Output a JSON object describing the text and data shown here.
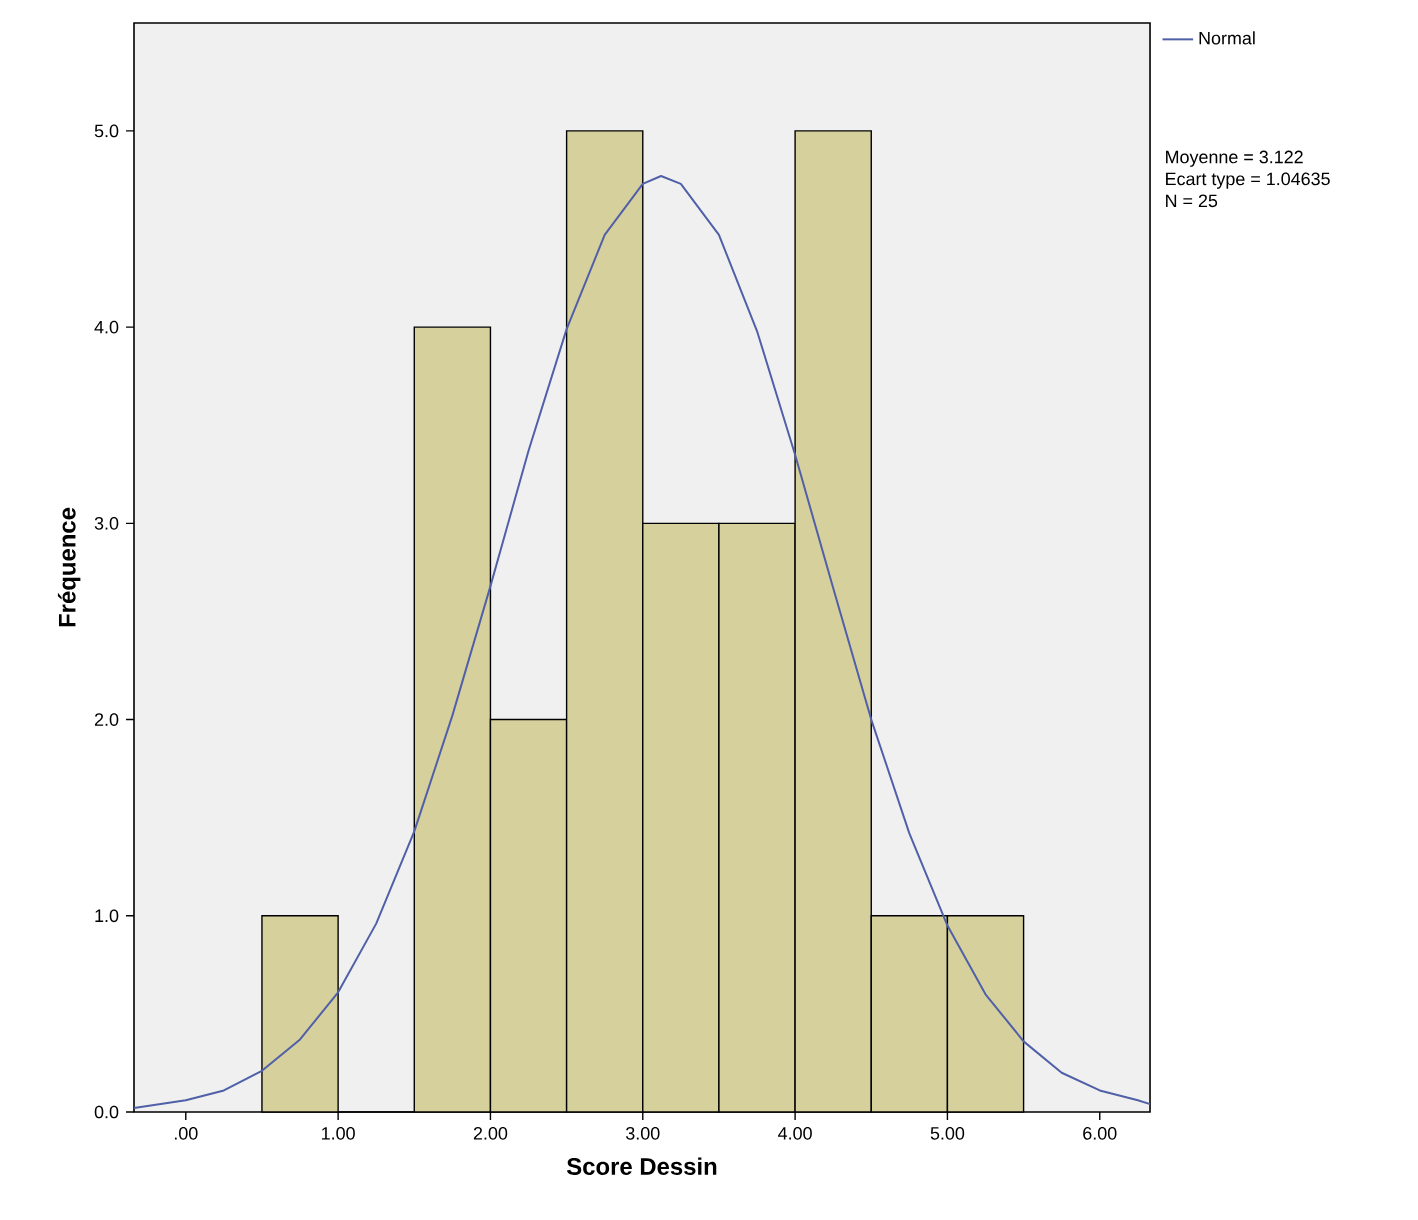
{
  "chart_data": {
    "type": "histogram",
    "xlabel": "Score Dessin",
    "ylabel": "Fréquence",
    "bins": [
      0.5,
      1.0,
      1.5,
      2.0,
      2.5,
      3.0,
      3.5,
      4.0,
      4.5,
      5.0,
      5.5
    ],
    "values": [
      1,
      0,
      4,
      2,
      5,
      3,
      3,
      5,
      1,
      1
    ],
    "color": "#d6d09c",
    "series": [
      {
        "type": "line",
        "name": "Normal",
        "color": "#5060a8",
        "x": [
          -0.34,
          0,
          0.25,
          0.5,
          0.75,
          1.0,
          1.25,
          1.5,
          1.75,
          2.0,
          2.25,
          2.5,
          2.75,
          3.0,
          3.12,
          3.25,
          3.5,
          3.75,
          4.0,
          4.25,
          4.5,
          4.75,
          5.0,
          5.25,
          5.5,
          5.75,
          6.0,
          6.25,
          6.33
        ],
        "values": [
          0.02,
          0.06,
          0.11,
          0.21,
          0.37,
          0.61,
          0.96,
          1.43,
          2.02,
          2.68,
          3.37,
          3.99,
          4.47,
          4.73,
          4.77,
          4.73,
          4.47,
          3.98,
          3.35,
          2.67,
          2.0,
          1.42,
          0.95,
          0.6,
          0.36,
          0.2,
          0.11,
          0.06,
          0.04
        ]
      }
    ],
    "xlim": [
      -0.34,
      6.33
    ],
    "ylim": [
      0,
      5.55
    ],
    "xticks": [
      {
        "value": 0,
        "label": ".00"
      },
      {
        "value": 1,
        "label": "1.00"
      },
      {
        "value": 2,
        "label": "2.00"
      },
      {
        "value": 3,
        "label": "3.00"
      },
      {
        "value": 4,
        "label": "4.00"
      },
      {
        "value": 5,
        "label": "5.00"
      },
      {
        "value": 6,
        "label": "6.00"
      }
    ],
    "yticks": [
      {
        "value": 0,
        "label": "0.0"
      },
      {
        "value": 1,
        "label": "1.0"
      },
      {
        "value": 2,
        "label": "2.0"
      },
      {
        "value": 3,
        "label": "3.0"
      },
      {
        "value": 4,
        "label": "4.0"
      },
      {
        "value": 5,
        "label": "5.0"
      }
    ],
    "legend": "top right",
    "annotations": [
      "Moyenne = 3.122",
      "Ecart type = 1.04635",
      "N = 25"
    ]
  }
}
